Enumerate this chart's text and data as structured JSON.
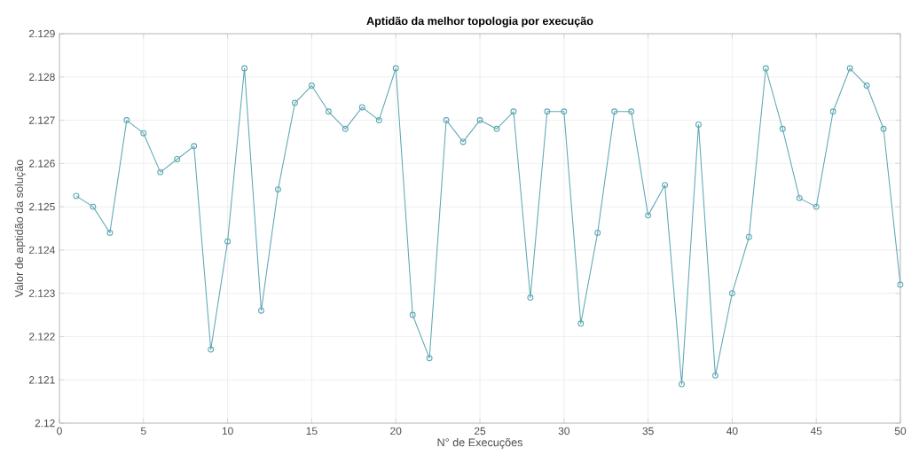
{
  "chart_data": {
    "type": "line",
    "title": "Aptidão da melhor topologia por execução",
    "xlabel": "N° de Execuções",
    "ylabel": "Valor de aptidão da solução",
    "x": [
      1,
      2,
      3,
      4,
      5,
      6,
      7,
      8,
      9,
      10,
      11,
      12,
      13,
      14,
      15,
      16,
      17,
      18,
      19,
      20,
      21,
      22,
      23,
      24,
      25,
      26,
      27,
      28,
      29,
      30,
      31,
      32,
      33,
      34,
      35,
      36,
      37,
      38,
      39,
      40,
      41,
      42,
      43,
      44,
      45,
      46,
      47,
      48,
      49,
      50
    ],
    "series": [
      {
        "color": "#5fa8b4",
        "values": [
          2.12525,
          2.125,
          2.1244,
          2.127,
          2.1267,
          2.1258,
          2.1261,
          2.1264,
          2.1217,
          2.1242,
          2.1282,
          2.1226,
          2.1254,
          2.1274,
          2.1278,
          2.1272,
          2.1268,
          2.1273,
          2.127,
          2.1282,
          2.1225,
          2.1215,
          2.127,
          2.1265,
          2.127,
          2.1268,
          2.1272,
          2.1229,
          2.1272,
          2.1272,
          2.1223,
          2.1244,
          2.1272,
          2.1272,
          2.1248,
          2.1255,
          2.1209,
          2.1269,
          2.1211,
          2.123,
          2.1243,
          2.1282,
          2.1268,
          2.1252,
          2.125,
          2.1272,
          2.1282,
          2.1278,
          2.1268,
          2.1232
        ]
      }
    ],
    "xlim": [
      0,
      50
    ],
    "ylim": [
      2.12,
      2.129
    ],
    "xticks": [
      0,
      5,
      10,
      15,
      20,
      25,
      30,
      35,
      40,
      45,
      50
    ],
    "yticks": [
      2.12,
      2.121,
      2.122,
      2.123,
      2.124,
      2.125,
      2.126,
      2.127,
      2.128,
      2.129
    ],
    "grid": true,
    "marker": "circle",
    "line_style": "solid"
  }
}
